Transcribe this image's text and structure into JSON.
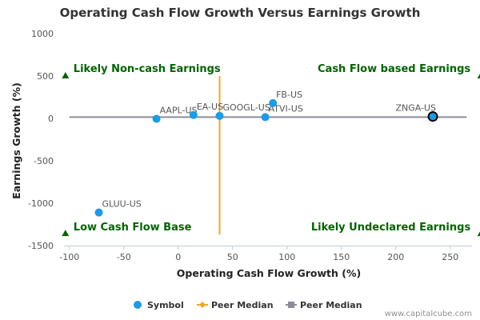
{
  "chart_data": {
    "type": "scatter",
    "title": "Operating Cash Flow Growth Versus Earnings Growth",
    "xlabel": "Operating Cash Flow Growth (%)",
    "ylabel": "Earnings Growth (%)",
    "xlim": [
      -105,
      270
    ],
    "ylim": [
      -1500,
      1000
    ],
    "xticks": [
      -100,
      -50,
      0,
      50,
      100,
      150,
      200,
      250
    ],
    "yticks": [
      1000,
      500,
      0,
      -500,
      -1000,
      -1500
    ],
    "grid": false,
    "points": [
      {
        "label": "AAPL-US",
        "x": -20,
        "y": -5
      },
      {
        "label": "EA-US",
        "x": 14,
        "y": 40
      },
      {
        "label": "GOOGL-US",
        "x": 38,
        "y": 30
      },
      {
        "label": "ATVI-US",
        "x": 80,
        "y": 15
      },
      {
        "label": "FB-US",
        "x": 87,
        "y": 180
      },
      {
        "label": "ZNGA-US",
        "x": 234,
        "y": 22,
        "highlight": true
      },
      {
        "label": "GLUU-US",
        "x": -73,
        "y": -1110
      }
    ],
    "peer_median_x": 38,
    "peer_median_y": 15,
    "quadrant_labels": {
      "top_left": "Likely Non-cash Earnings",
      "top_right": "Cash Flow based Earnings",
      "bottom_left": "Low Cash Flow Base",
      "bottom_right": "Likely Undeclared Earnings"
    },
    "legend": [
      {
        "name": "Symbol",
        "color": "#1b9be8"
      },
      {
        "name": "Peer Median",
        "color": "#f5a623"
      },
      {
        "name": "Peer Median",
        "color": "#8c8c9a"
      }
    ],
    "colors": {
      "point": "#1b9be8",
      "vline": "#f5a623",
      "hline": "#8c8c9a",
      "quadrant": "#006400"
    }
  },
  "credit": "www.capitalcube.com"
}
